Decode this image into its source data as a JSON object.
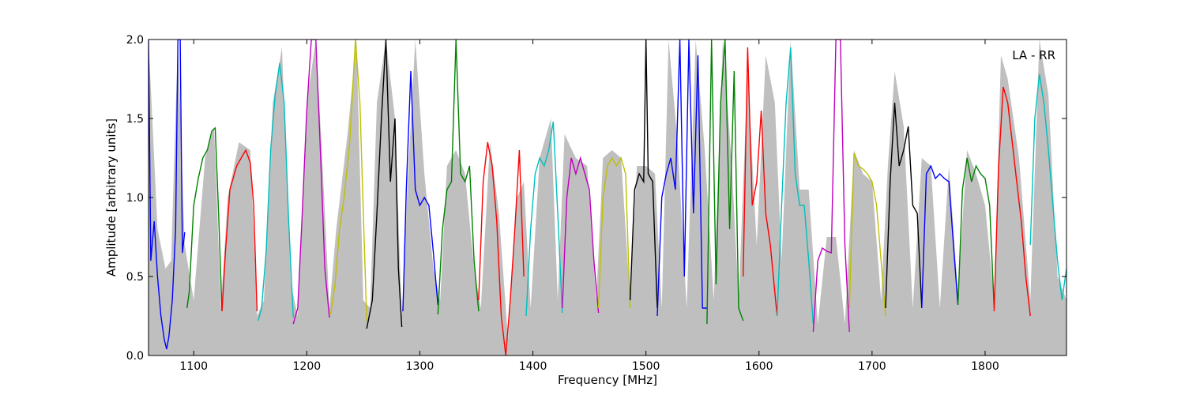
{
  "chart_data": {
    "type": "line",
    "xlabel": "Frequency [MHz]",
    "ylabel": "Amplitude [arbitrary units]",
    "annotation": "LA - RR",
    "annotation_placement": "top-right",
    "xlim": [
      1060,
      1872
    ],
    "ylim": [
      0,
      2.0
    ],
    "xticks": [
      1100,
      1200,
      1300,
      1400,
      1500,
      1600,
      1700,
      1800
    ],
    "yticks": [
      0.0,
      0.5,
      1.0,
      1.5,
      2.0
    ],
    "xtick_labels": [
      "1100",
      "1200",
      "1300",
      "1400",
      "1500",
      "1600",
      "1700",
      "1800"
    ],
    "ytick_labels": [
      "0.0",
      "0.5",
      "1.0",
      "1.5",
      "2.0"
    ],
    "grid": false,
    "legend": "none",
    "envelope_color": "#bfbfbf",
    "envelope": {
      "x": [
        1060,
        1068,
        1075,
        1080,
        1086,
        1092,
        1100,
        1110,
        1118,
        1124,
        1130,
        1140,
        1150,
        1156,
        1162,
        1170,
        1178,
        1186,
        1192,
        1200,
        1208,
        1214,
        1220,
        1226,
        1236,
        1244,
        1250,
        1256,
        1262,
        1270,
        1278,
        1284,
        1290,
        1296,
        1304,
        1312,
        1318,
        1324,
        1332,
        1340,
        1348,
        1354,
        1362,
        1370,
        1378,
        1386,
        1392,
        1398,
        1406,
        1416,
        1422,
        1428,
        1438,
        1448,
        1456,
        1462,
        1470,
        1478,
        1486,
        1492,
        1500,
        1508,
        1514,
        1520,
        1528,
        1536,
        1544,
        1552,
        1560,
        1568,
        1576,
        1582,
        1590,
        1598,
        1606,
        1614,
        1620,
        1628,
        1636,
        1644,
        1652,
        1660,
        1668,
        1676,
        1684,
        1692,
        1700,
        1708,
        1714,
        1720,
        1728,
        1736,
        1744,
        1752,
        1760,
        1768,
        1776,
        1784,
        1792,
        1800,
        1808,
        1814,
        1820,
        1830,
        1840,
        1848,
        1856,
        1864,
        1872
      ],
      "y": [
        2.0,
        0.8,
        0.55,
        0.6,
        2.0,
        0.7,
        0.35,
        1.25,
        1.45,
        0.3,
        1.0,
        1.35,
        1.3,
        0.25,
        0.35,
        1.6,
        1.95,
        0.45,
        0.25,
        1.6,
        2.0,
        1.2,
        0.3,
        0.8,
        1.4,
        2.0,
        0.35,
        0.3,
        1.6,
        2.0,
        1.5,
        0.25,
        1.2,
        2.0,
        1.15,
        0.55,
        0.35,
        1.2,
        1.3,
        1.15,
        0.55,
        0.3,
        1.35,
        0.9,
        0.1,
        1.0,
        1.1,
        0.3,
        1.25,
        1.5,
        0.35,
        1.4,
        1.25,
        1.2,
        0.35,
        1.25,
        1.3,
        1.25,
        0.35,
        1.2,
        1.2,
        1.15,
        0.3,
        2.0,
        1.35,
        0.3,
        2.0,
        1.3,
        0.35,
        2.0,
        1.2,
        0.35,
        1.8,
        0.7,
        1.9,
        1.6,
        0.6,
        2.0,
        1.05,
        1.05,
        0.2,
        0.75,
        0.75,
        0.2,
        1.3,
        1.15,
        1.1,
        0.35,
        1.2,
        1.8,
        1.45,
        0.3,
        1.25,
        1.2,
        0.3,
        1.2,
        0.4,
        1.3,
        1.15,
        0.95,
        0.35,
        1.9,
        1.75,
        1.25,
        0.35,
        2.0,
        1.65,
        0.5,
        0.35
      ]
    },
    "series": [
      {
        "color": "#0000ff",
        "x": [
          1060,
          1062,
          1065,
          1068,
          1071,
          1074,
          1076,
          1078,
          1081,
          1084,
          1086,
          1088,
          1090,
          1092
        ],
        "y": [
          2.0,
          0.6,
          0.85,
          0.5,
          0.25,
          0.1,
          0.04,
          0.12,
          0.35,
          0.8,
          2.0,
          2.0,
          0.65,
          0.78
        ]
      },
      {
        "color": "#008000",
        "x": [
          1094,
          1096,
          1100,
          1104,
          1108,
          1112,
          1116,
          1119,
          1122,
          1125
        ],
        "y": [
          0.3,
          0.4,
          0.95,
          1.12,
          1.25,
          1.3,
          1.42,
          1.44,
          0.9,
          0.28
        ]
      },
      {
        "color": "#ff0000",
        "x": [
          1125,
          1128,
          1132,
          1138,
          1142,
          1146,
          1150,
          1153,
          1156
        ],
        "y": [
          0.28,
          0.65,
          1.05,
          1.2,
          1.25,
          1.3,
          1.22,
          0.95,
          0.28
        ]
      },
      {
        "color": "#00bfbf",
        "x": [
          1157,
          1160,
          1164,
          1168,
          1172,
          1176,
          1180,
          1184,
          1188
        ],
        "y": [
          0.22,
          0.3,
          0.65,
          1.3,
          1.65,
          1.85,
          1.6,
          0.85,
          0.24
        ]
      },
      {
        "color": "#bf00bf",
        "x": [
          1188,
          1192,
          1196,
          1200,
          1204,
          1208,
          1212,
          1216,
          1220
        ],
        "y": [
          0.2,
          0.3,
          0.9,
          1.55,
          2.0,
          2.0,
          1.3,
          0.55,
          0.24
        ]
      },
      {
        "color": "#bfbf00",
        "x": [
          1221,
          1225,
          1229,
          1233,
          1238,
          1243,
          1247,
          1250,
          1253
        ],
        "y": [
          0.26,
          0.45,
          0.8,
          1.0,
          1.35,
          2.0,
          1.6,
          0.9,
          0.22
        ]
      },
      {
        "color": "#000000",
        "x": [
          1253,
          1258,
          1262,
          1266,
          1270,
          1274,
          1278,
          1281,
          1284
        ],
        "y": [
          0.17,
          0.35,
          0.9,
          1.5,
          2.0,
          1.1,
          1.5,
          0.55,
          0.18
        ]
      },
      {
        "color": "#0000ff",
        "x": [
          1285,
          1288,
          1292,
          1296,
          1300,
          1304,
          1308,
          1312,
          1316
        ],
        "y": [
          0.28,
          1.05,
          1.8,
          1.05,
          0.95,
          1.0,
          0.95,
          0.65,
          0.32
        ]
      },
      {
        "color": "#008000",
        "x": [
          1316,
          1320,
          1324,
          1328,
          1332,
          1336,
          1340,
          1344,
          1348,
          1352
        ],
        "y": [
          0.26,
          0.8,
          1.05,
          1.1,
          2.0,
          1.15,
          1.1,
          1.2,
          0.6,
          0.28
        ]
      },
      {
        "color": "#ff0000",
        "x": [
          1352,
          1356,
          1360,
          1364,
          1368,
          1372,
          1376,
          1380,
          1384,
          1388,
          1392
        ],
        "y": [
          0.35,
          1.1,
          1.35,
          1.2,
          0.85,
          0.25,
          0.0,
          0.35,
          0.8,
          1.3,
          0.5
        ]
      },
      {
        "color": "#00bfbf",
        "x": [
          1394,
          1398,
          1402,
          1406,
          1410,
          1414,
          1418,
          1422,
          1426
        ],
        "y": [
          0.25,
          0.8,
          1.15,
          1.25,
          1.2,
          1.3,
          1.48,
          0.9,
          0.27
        ]
      },
      {
        "color": "#bf00bf",
        "x": [
          1426,
          1430,
          1434,
          1438,
          1442,
          1446,
          1450,
          1454,
          1458
        ],
        "y": [
          0.3,
          1.0,
          1.25,
          1.15,
          1.25,
          1.15,
          1.05,
          0.6,
          0.27
        ]
      },
      {
        "color": "#bfbf00",
        "x": [
          1458,
          1462,
          1466,
          1470,
          1474,
          1478,
          1482,
          1486
        ],
        "y": [
          0.3,
          1.0,
          1.2,
          1.25,
          1.2,
          1.25,
          1.15,
          0.3
        ]
      },
      {
        "color": "#000000",
        "x": [
          1486,
          1490,
          1494,
          1498,
          1500,
          1502,
          1506,
          1510
        ],
        "y": [
          0.35,
          1.05,
          1.15,
          1.1,
          2.0,
          1.15,
          1.1,
          0.3
        ]
      },
      {
        "color": "#0000ff",
        "x": [
          1510,
          1514,
          1518,
          1522,
          1526,
          1530,
          1534,
          1538,
          1542,
          1546,
          1550,
          1554
        ],
        "y": [
          0.25,
          1.0,
          1.15,
          1.25,
          1.05,
          2.0,
          0.5,
          2.0,
          0.9,
          1.9,
          0.3,
          0.3
        ]
      },
      {
        "color": "#008000",
        "x": [
          1554,
          1558,
          1562,
          1566,
          1570,
          1574,
          1578,
          1582,
          1586
        ],
        "y": [
          0.2,
          2.0,
          0.45,
          1.6,
          2.0,
          0.8,
          1.8,
          0.3,
          0.22
        ]
      },
      {
        "color": "#ff0000",
        "x": [
          1586,
          1590,
          1594,
          1598,
          1602,
          1606,
          1610,
          1616
        ],
        "y": [
          0.5,
          1.95,
          0.95,
          1.1,
          1.55,
          0.9,
          0.7,
          0.25
        ]
      },
      {
        "color": "#00bfbf",
        "x": [
          1616,
          1620,
          1624,
          1628,
          1632,
          1636,
          1640,
          1644,
          1648
        ],
        "y": [
          0.25,
          0.95,
          1.6,
          1.95,
          1.15,
          0.95,
          0.95,
          0.6,
          0.2
        ]
      },
      {
        "color": "#bf00bf",
        "x": [
          1648,
          1652,
          1656,
          1660,
          1664,
          1668,
          1672,
          1676,
          1680
        ],
        "y": [
          0.15,
          0.6,
          0.68,
          0.66,
          0.65,
          2.0,
          2.0,
          0.7,
          0.15
        ]
      },
      {
        "color": "#bfbf00",
        "x": [
          1680,
          1684,
          1688,
          1692,
          1696,
          1700,
          1704,
          1708,
          1712
        ],
        "y": [
          0.3,
          1.28,
          1.2,
          1.18,
          1.15,
          1.1,
          0.95,
          0.6,
          0.25
        ]
      },
      {
        "color": "#000000",
        "x": [
          1712,
          1716,
          1720,
          1724,
          1728,
          1732,
          1736,
          1740,
          1744
        ],
        "y": [
          0.3,
          1.1,
          1.6,
          1.2,
          1.3,
          1.45,
          0.95,
          0.9,
          0.3
        ]
      },
      {
        "color": "#0000ff",
        "x": [
          1744,
          1748,
          1752,
          1756,
          1760,
          1764,
          1768,
          1772,
          1776
        ],
        "y": [
          0.3,
          1.15,
          1.2,
          1.12,
          1.15,
          1.12,
          1.1,
          0.7,
          0.32
        ]
      },
      {
        "color": "#008000",
        "x": [
          1776,
          1780,
          1784,
          1788,
          1792,
          1796,
          1800,
          1804,
          1808
        ],
        "y": [
          0.32,
          1.05,
          1.25,
          1.1,
          1.2,
          1.15,
          1.12,
          0.95,
          0.3
        ]
      },
      {
        "color": "#ff0000",
        "x": [
          1808,
          1812,
          1816,
          1820,
          1824,
          1828,
          1832,
          1836,
          1840
        ],
        "y": [
          0.28,
          1.2,
          1.7,
          1.6,
          1.35,
          1.1,
          0.85,
          0.5,
          0.25
        ]
      },
      {
        "color": "#00bfbf",
        "x": [
          1840,
          1844,
          1848,
          1852,
          1856,
          1860,
          1864,
          1868,
          1872
        ],
        "y": [
          0.7,
          1.5,
          1.78,
          1.6,
          1.3,
          0.95,
          0.6,
          0.35,
          0.55
        ]
      }
    ]
  }
}
